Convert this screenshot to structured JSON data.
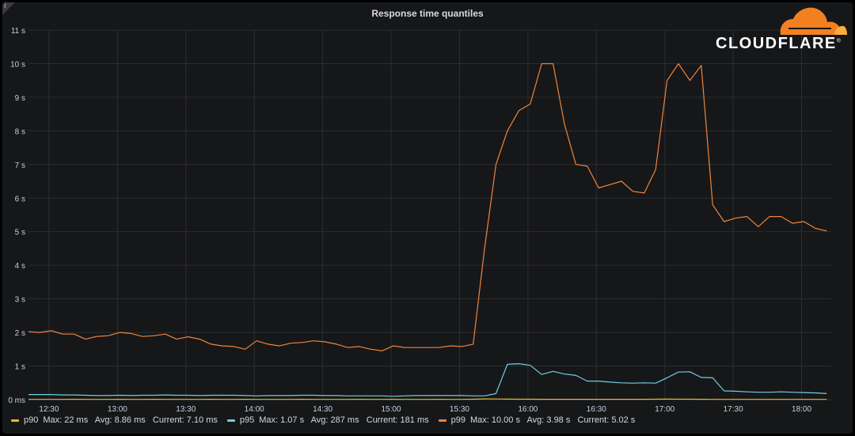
{
  "panel": {
    "title": "Response time quantiles",
    "info_icon": "info-icon"
  },
  "logo": {
    "text": "CLOUDFLARE",
    "trademark": "®",
    "cloud_color": "#f38020"
  },
  "colors": {
    "background": "#161719",
    "grid": "#2c2d30",
    "axis_text": "#c7d0d9"
  },
  "chart_data": {
    "type": "line",
    "title": "Response time quantiles",
    "xlabel": "",
    "ylabel": "",
    "ylim": [
      0,
      11
    ],
    "xlim": [
      "12:21",
      "18:13"
    ],
    "grid": true,
    "legend_placement": "bottom-left",
    "x_ticks": [
      "12:30",
      "13:00",
      "13:30",
      "14:00",
      "14:30",
      "15:00",
      "15:30",
      "16:00",
      "16:30",
      "17:00",
      "17:30",
      "18:00"
    ],
    "y_ticks": [
      "0 ms",
      "1 s",
      "2 s",
      "3 s",
      "4 s",
      "5 s",
      "6 s",
      "7 s",
      "8 s",
      "9 s",
      "10 s",
      "11 s"
    ],
    "x": [
      "12:21",
      "12:26",
      "12:31",
      "12:36",
      "12:41",
      "12:46",
      "12:51",
      "12:56",
      "13:01",
      "13:06",
      "13:11",
      "13:16",
      "13:21",
      "13:26",
      "13:31",
      "13:36",
      "13:41",
      "13:46",
      "13:51",
      "13:56",
      "14:01",
      "14:06",
      "14:11",
      "14:16",
      "14:21",
      "14:26",
      "14:31",
      "14:36",
      "14:41",
      "14:46",
      "14:51",
      "14:56",
      "15:01",
      "15:06",
      "15:11",
      "15:16",
      "15:21",
      "15:26",
      "15:31",
      "15:36",
      "15:41",
      "15:46",
      "15:51",
      "15:56",
      "16:01",
      "16:06",
      "16:11",
      "16:16",
      "16:21",
      "16:26",
      "16:31",
      "16:36",
      "16:41",
      "16:46",
      "16:51",
      "16:56",
      "17:01",
      "17:06",
      "17:11",
      "17:16",
      "17:21",
      "17:26",
      "17:31",
      "17:36",
      "17:41",
      "17:46",
      "17:51",
      "17:56",
      "18:01",
      "18:06",
      "18:11"
    ],
    "series": [
      {
        "name": "p90",
        "unit": "s",
        "color": "#eab839",
        "stats": {
          "max": "22 ms",
          "avg": "8.86 ms",
          "current": "7.10 ms"
        },
        "values": [
          0.007,
          0.008,
          0.008,
          0.007,
          0.009,
          0.008,
          0.008,
          0.007,
          0.009,
          0.008,
          0.008,
          0.009,
          0.008,
          0.008,
          0.007,
          0.008,
          0.009,
          0.008,
          0.008,
          0.009,
          0.008,
          0.007,
          0.008,
          0.008,
          0.009,
          0.008,
          0.007,
          0.008,
          0.008,
          0.009,
          0.008,
          0.008,
          0.009,
          0.008,
          0.007,
          0.008,
          0.009,
          0.008,
          0.008,
          0.012,
          0.022,
          0.02,
          0.015,
          0.012,
          0.011,
          0.01,
          0.01,
          0.009,
          0.009,
          0.009,
          0.01,
          0.009,
          0.009,
          0.009,
          0.01,
          0.012,
          0.013,
          0.012,
          0.011,
          0.009,
          0.008,
          0.008,
          0.008,
          0.007,
          0.008,
          0.007,
          0.008,
          0.007,
          0.007,
          0.007,
          0.0071
        ]
      },
      {
        "name": "p95",
        "unit": "s",
        "color": "#6ed0e0",
        "stats": {
          "max": "1.07 s",
          "avg": "287 ms",
          "current": "181 ms"
        },
        "values": [
          0.15,
          0.15,
          0.15,
          0.14,
          0.14,
          0.13,
          0.12,
          0.12,
          0.13,
          0.12,
          0.13,
          0.13,
          0.14,
          0.13,
          0.13,
          0.12,
          0.13,
          0.13,
          0.13,
          0.12,
          0.11,
          0.12,
          0.12,
          0.12,
          0.13,
          0.13,
          0.12,
          0.12,
          0.11,
          0.11,
          0.11,
          0.11,
          0.1,
          0.11,
          0.12,
          0.12,
          0.12,
          0.12,
          0.12,
          0.11,
          0.11,
          0.18,
          1.05,
          1.07,
          1.02,
          0.75,
          0.84,
          0.76,
          0.72,
          0.55,
          0.55,
          0.52,
          0.5,
          0.49,
          0.5,
          0.49,
          0.65,
          0.82,
          0.83,
          0.66,
          0.65,
          0.26,
          0.25,
          0.23,
          0.22,
          0.22,
          0.23,
          0.22,
          0.21,
          0.2,
          0.18
        ]
      },
      {
        "name": "p99",
        "unit": "s",
        "color": "#ef843c",
        "stats": {
          "max": "10.00 s",
          "avg": "3.98 s",
          "current": "5.02 s"
        },
        "values": [
          2.02,
          2.0,
          2.05,
          1.95,
          1.95,
          1.8,
          1.88,
          1.9,
          2.0,
          1.97,
          1.88,
          1.9,
          1.95,
          1.8,
          1.87,
          1.8,
          1.65,
          1.6,
          1.58,
          1.5,
          1.75,
          1.65,
          1.6,
          1.68,
          1.7,
          1.75,
          1.72,
          1.65,
          1.55,
          1.58,
          1.5,
          1.45,
          1.6,
          1.55,
          1.55,
          1.55,
          1.55,
          1.6,
          1.58,
          1.65,
          4.5,
          7.0,
          8.0,
          8.6,
          8.8,
          10.0,
          10.0,
          8.2,
          7.0,
          6.95,
          6.3,
          6.4,
          6.5,
          6.2,
          6.15,
          6.85,
          9.5,
          10.0,
          9.5,
          9.95,
          5.8,
          5.3,
          5.4,
          5.45,
          5.15,
          5.45,
          5.45,
          5.25,
          5.3,
          5.1,
          5.02
        ]
      }
    ]
  },
  "legend": [
    {
      "name": "p90",
      "stats": "Max: 22 ms   Avg: 8.86 ms   Current: 7.10 ms",
      "color": "#eab839"
    },
    {
      "name": "p95",
      "stats": "Max: 1.07 s   Avg: 287 ms   Current: 181 ms",
      "color": "#6ed0e0"
    },
    {
      "name": "p99",
      "stats": "Max: 10.00 s   Avg: 3.98 s   Current: 5.02 s",
      "color": "#ef843c"
    }
  ]
}
